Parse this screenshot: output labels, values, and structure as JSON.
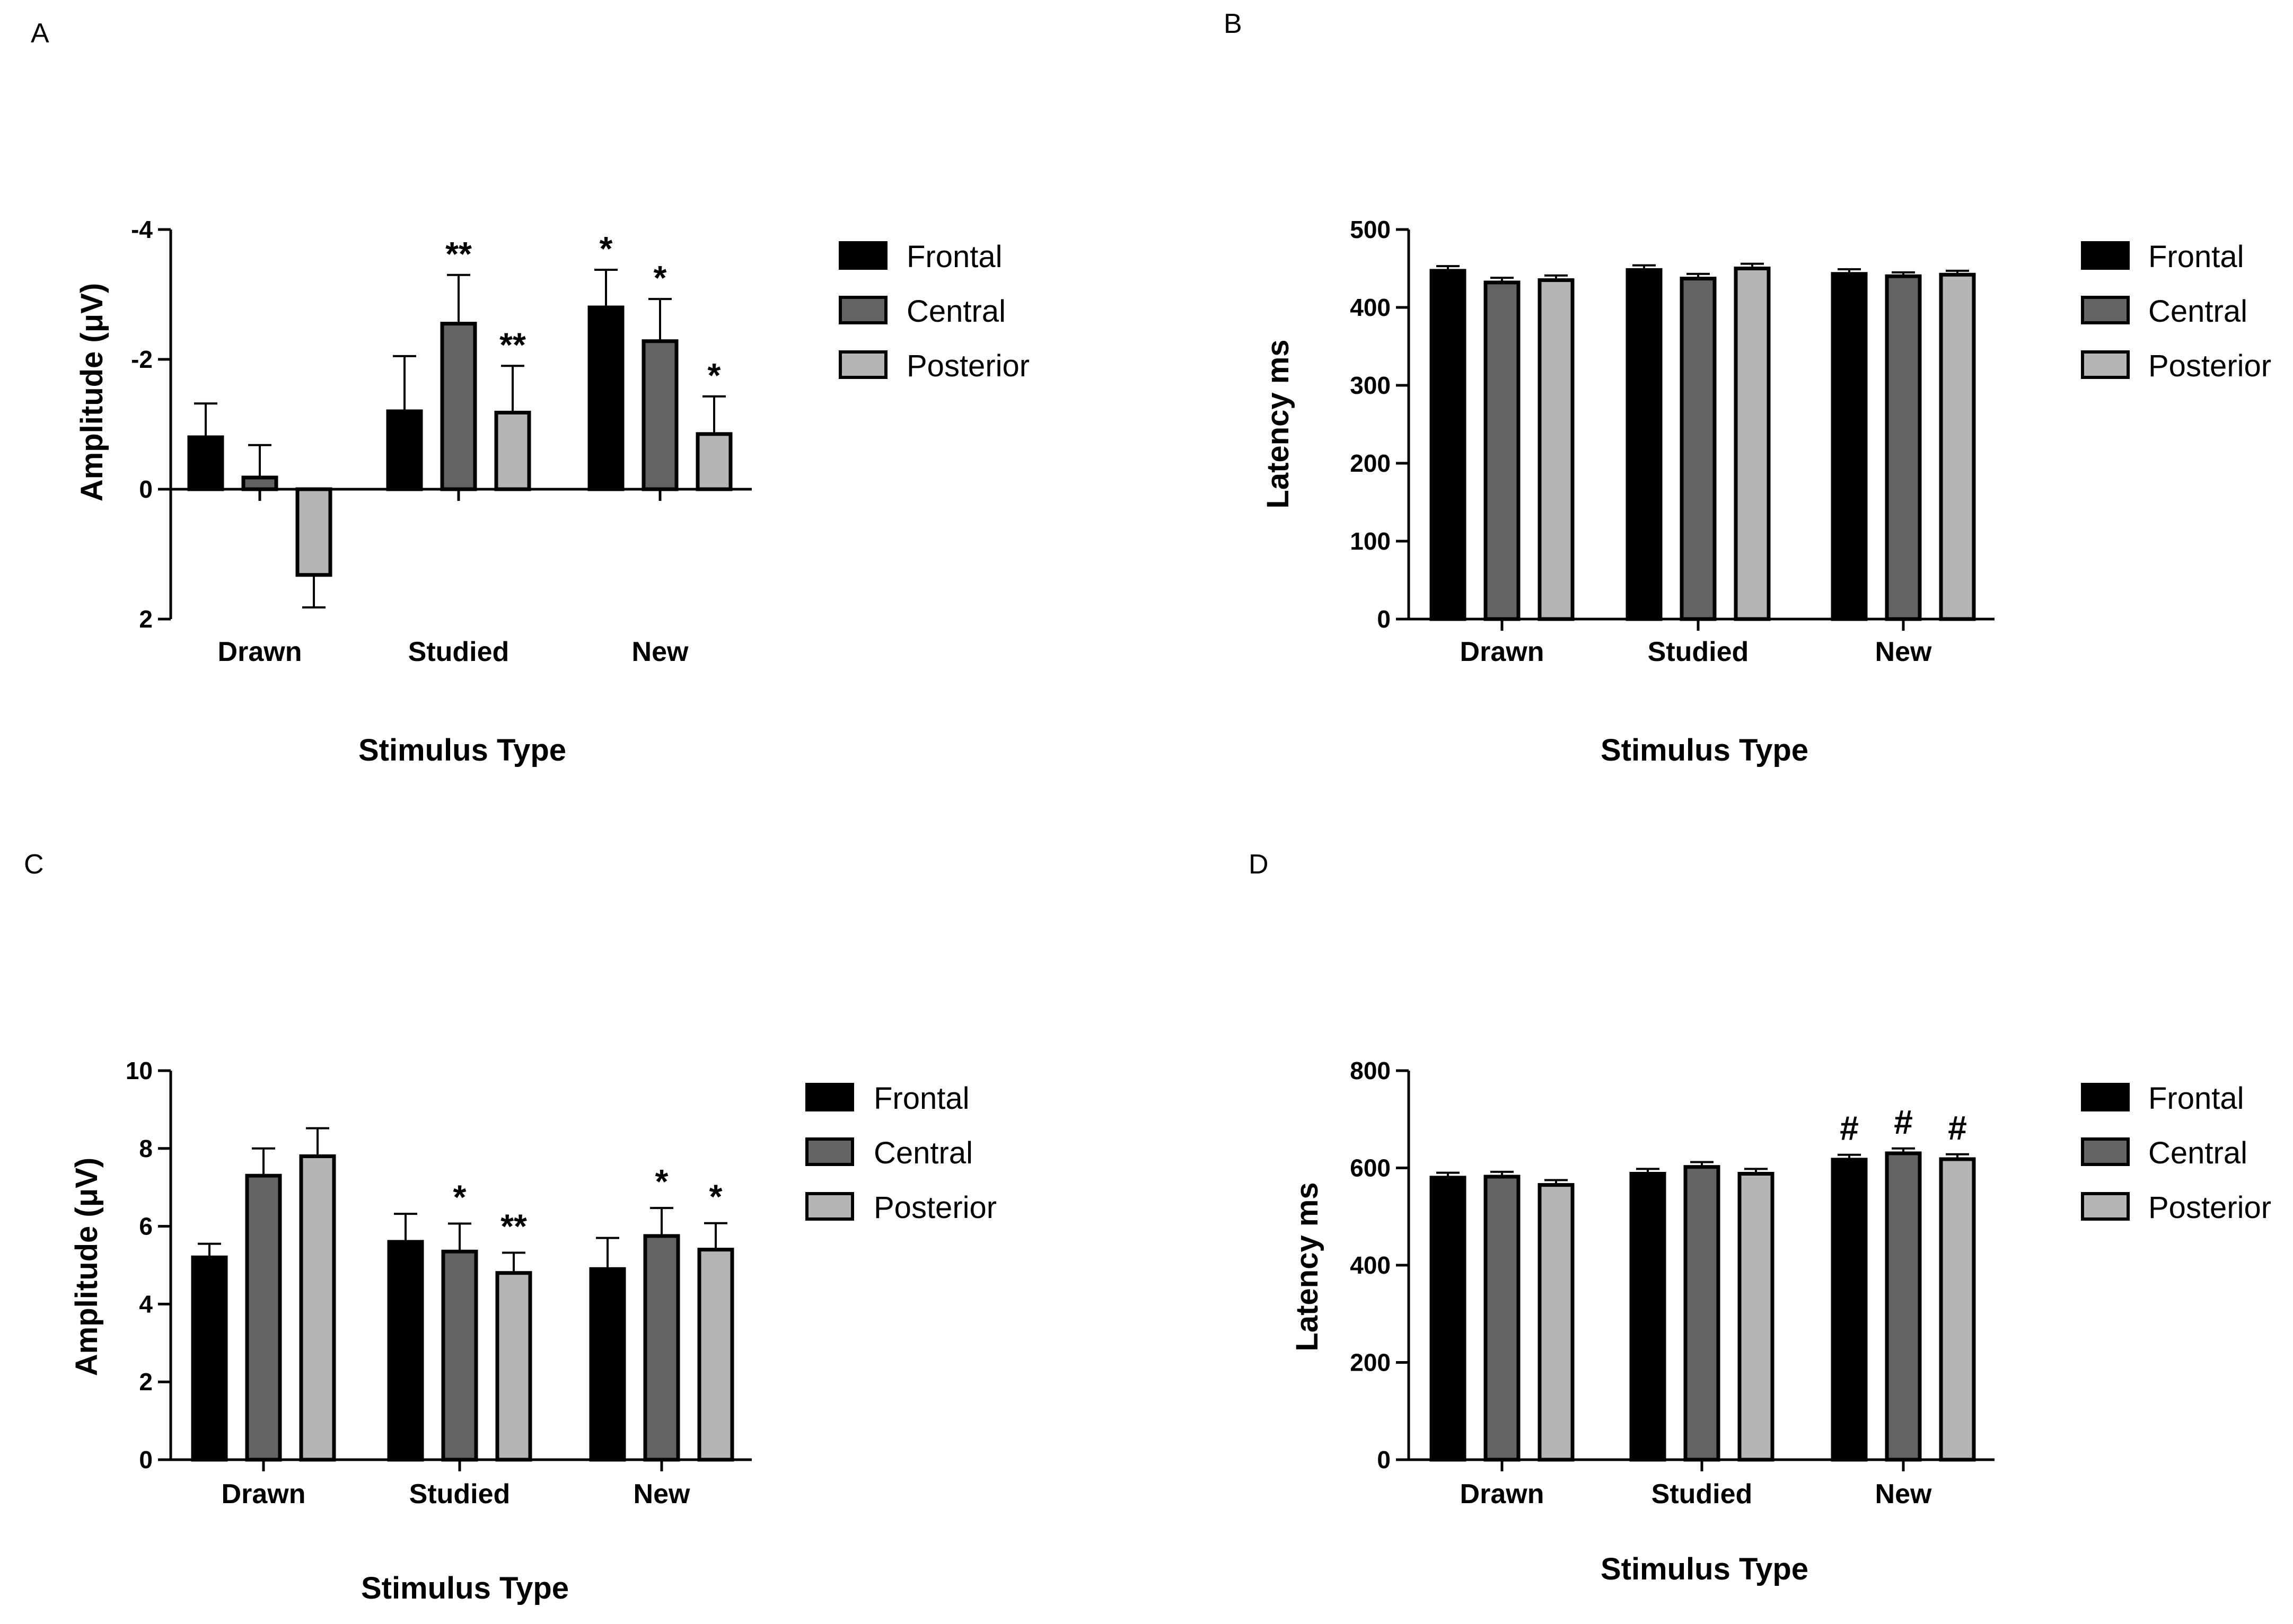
{
  "colors": {
    "frontal": "#000000",
    "central": "#636363",
    "posterior": "#b5b5b5",
    "stroke": "#000000"
  },
  "chart_data": [
    {
      "id": "A",
      "panel_label": "A",
      "type": "bar",
      "title": "",
      "xlabel": "Stimulus Type",
      "ylabel": "Amplitude (μV)",
      "ylim": [
        -4,
        2
      ],
      "y_inverted": true,
      "yticks": [
        -4,
        -2,
        0,
        2
      ],
      "ytick_labels": [
        "-4",
        "-2",
        "0",
        "2"
      ],
      "categories": [
        "Drawn",
        "Studied",
        "New"
      ],
      "legend": [
        "Frontal",
        "Central",
        "Posterior"
      ],
      "legend_position": "right",
      "series": [
        {
          "name": "Frontal",
          "values": [
            -0.8,
            -1.2,
            -2.8
          ],
          "errors": [
            0.52,
            0.85,
            0.58
          ],
          "sig": [
            "",
            "",
            "*"
          ]
        },
        {
          "name": "Central",
          "values": [
            -0.18,
            -2.55,
            -2.28
          ],
          "errors": [
            0.5,
            0.75,
            0.65
          ],
          "sig": [
            "",
            "**",
            "*"
          ]
        },
        {
          "name": "Posterior",
          "values": [
            1.32,
            -1.18,
            -0.85
          ],
          "errors": [
            0.5,
            0.72,
            0.58
          ],
          "sig": [
            "",
            "**",
            "*"
          ]
        }
      ]
    },
    {
      "id": "B",
      "panel_label": "B",
      "type": "bar",
      "title": "",
      "xlabel": "Stimulus Type",
      "ylabel": "Latency ms",
      "ylim": [
        0,
        500
      ],
      "y_inverted": false,
      "yticks": [
        0,
        100,
        200,
        300,
        400,
        500
      ],
      "ytick_labels": [
        "0",
        "100",
        "200",
        "300",
        "400",
        "500"
      ],
      "categories": [
        "Drawn",
        "Studied",
        "New"
      ],
      "legend": [
        "Frontal",
        "Central",
        "Posterior"
      ],
      "legend_position": "right",
      "series": [
        {
          "name": "Frontal",
          "values": [
            447,
            448,
            443
          ],
          "errors": [
            6,
            6,
            6
          ],
          "sig": [
            "",
            "",
            ""
          ]
        },
        {
          "name": "Central",
          "values": [
            432,
            437,
            440
          ],
          "errors": [
            6,
            6,
            5
          ],
          "sig": [
            "",
            "",
            ""
          ]
        },
        {
          "name": "Posterior",
          "values": [
            435,
            450,
            442
          ],
          "errors": [
            6,
            6,
            5
          ],
          "sig": [
            "",
            "",
            ""
          ]
        }
      ]
    },
    {
      "id": "C",
      "panel_label": "C",
      "type": "bar",
      "title": "",
      "xlabel": "Stimulus Type",
      "ylabel": "Amplitude (μV)",
      "ylim": [
        0,
        10
      ],
      "y_inverted": false,
      "yticks": [
        0,
        2,
        4,
        6,
        8,
        10
      ],
      "ytick_labels": [
        "0",
        "2",
        "4",
        "6",
        "8",
        "10"
      ],
      "categories": [
        "Drawn",
        "Studied",
        "New"
      ],
      "legend": [
        "Frontal",
        "Central",
        "Posterior"
      ],
      "legend_position": "right",
      "series": [
        {
          "name": "Frontal",
          "values": [
            5.2,
            5.6,
            4.9
          ],
          "errors": [
            0.35,
            0.72,
            0.8
          ],
          "sig": [
            "",
            "",
            ""
          ]
        },
        {
          "name": "Central",
          "values": [
            7.3,
            5.35,
            5.75
          ],
          "errors": [
            0.7,
            0.72,
            0.72
          ],
          "sig": [
            "",
            "*",
            "*"
          ]
        },
        {
          "name": "Posterior",
          "values": [
            7.8,
            4.8,
            5.4
          ],
          "errors": [
            0.72,
            0.52,
            0.68
          ],
          "sig": [
            "",
            "**",
            "*"
          ]
        }
      ]
    },
    {
      "id": "D",
      "panel_label": "D",
      "type": "bar",
      "title": "",
      "xlabel": "Stimulus Type",
      "ylabel": "Latency ms",
      "ylim": [
        0,
        800
      ],
      "y_inverted": false,
      "yticks": [
        0,
        200,
        400,
        600,
        800
      ],
      "ytick_labels": [
        "0",
        "200",
        "400",
        "600",
        "800"
      ],
      "categories": [
        "Drawn",
        "Studied",
        "New"
      ],
      "legend": [
        "Frontal",
        "Central",
        "Posterior"
      ],
      "legend_position": "right",
      "series": [
        {
          "name": "Frontal",
          "values": [
            580,
            588,
            617
          ],
          "errors": [
            10,
            10,
            10
          ],
          "sig": [
            "",
            "",
            "#"
          ]
        },
        {
          "name": "Central",
          "values": [
            582,
            602,
            630
          ],
          "errors": [
            10,
            10,
            10
          ],
          "sig": [
            "",
            "",
            "#"
          ]
        },
        {
          "name": "Posterior",
          "values": [
            565,
            588,
            618
          ],
          "errors": [
            10,
            10,
            10
          ],
          "sig": [
            "",
            "",
            "#"
          ]
        }
      ]
    }
  ]
}
